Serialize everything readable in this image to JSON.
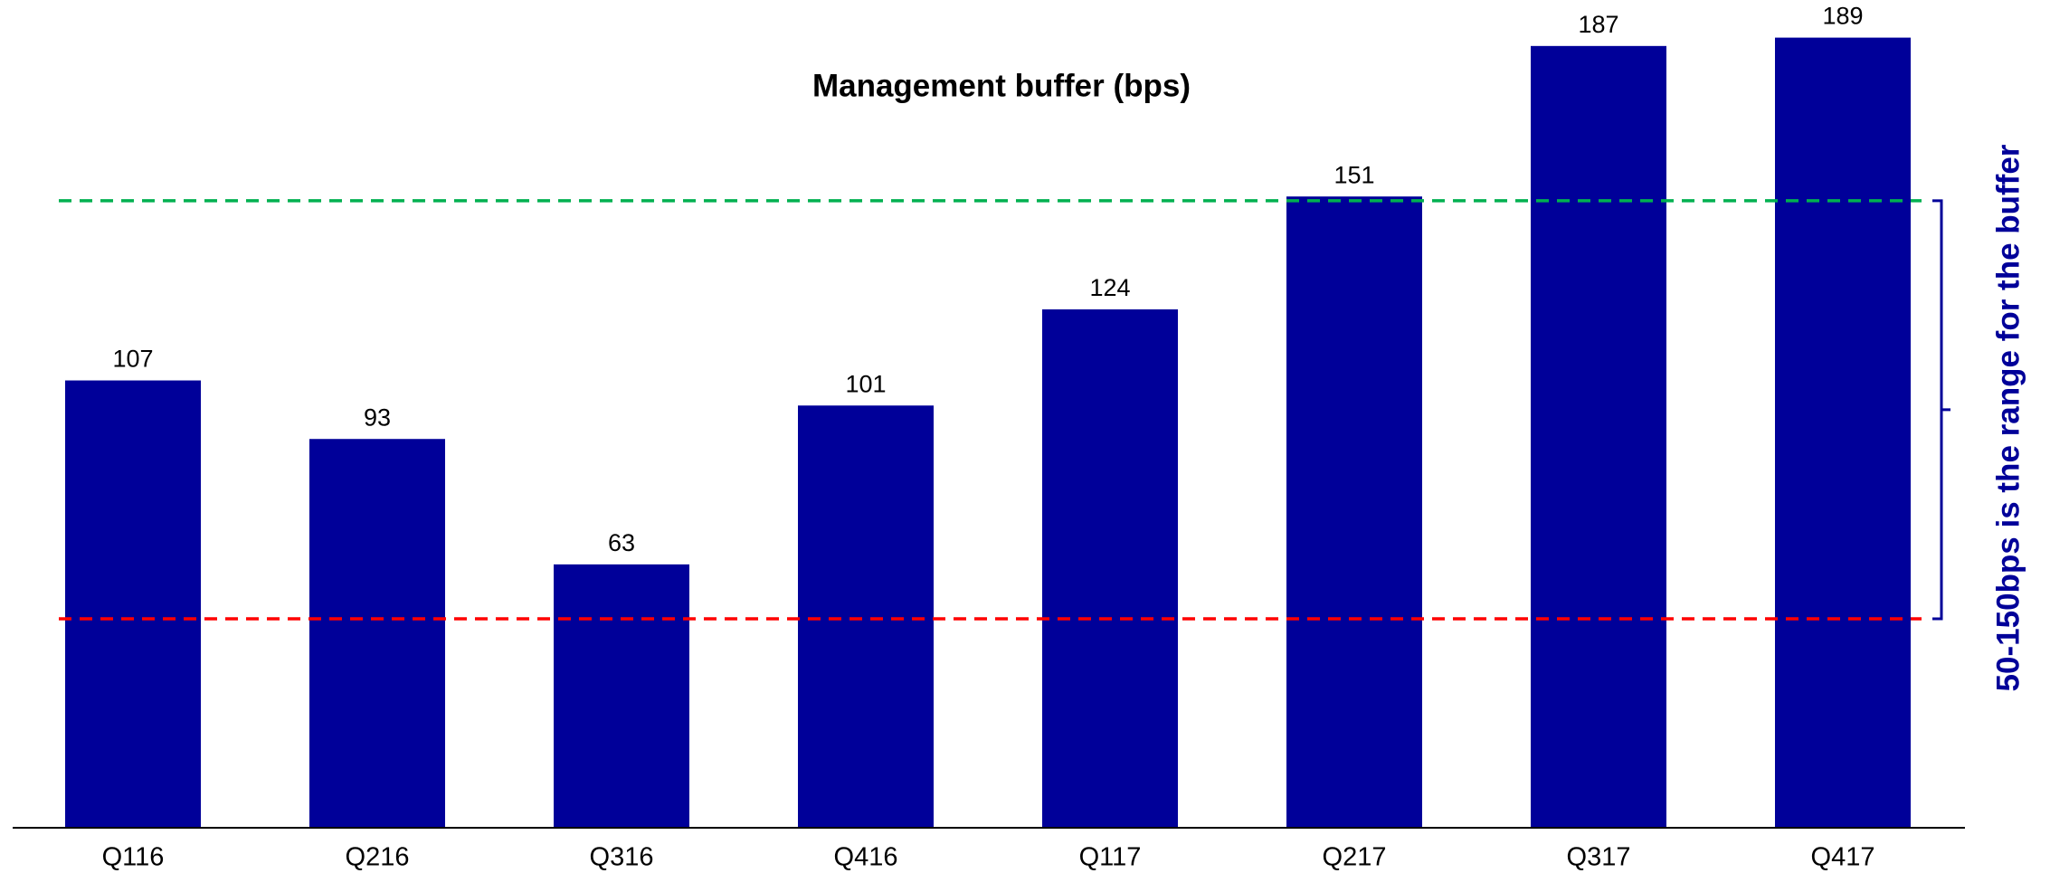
{
  "chart_data": {
    "type": "bar",
    "title": "Management buffer (bps)",
    "categories": [
      "Q116",
      "Q216",
      "Q316",
      "Q416",
      "Q117",
      "Q217",
      "Q317",
      "Q417"
    ],
    "values": [
      107,
      93,
      63,
      101,
      124,
      151,
      187,
      189
    ],
    "color": "#000099",
    "ylim": [
      0,
      198
    ],
    "reference_lines": [
      {
        "value": 150,
        "color": "#00b050"
      },
      {
        "value": 50,
        "color": "#ff0000"
      }
    ],
    "annotation": "50-150bps is the range for the buffer"
  }
}
